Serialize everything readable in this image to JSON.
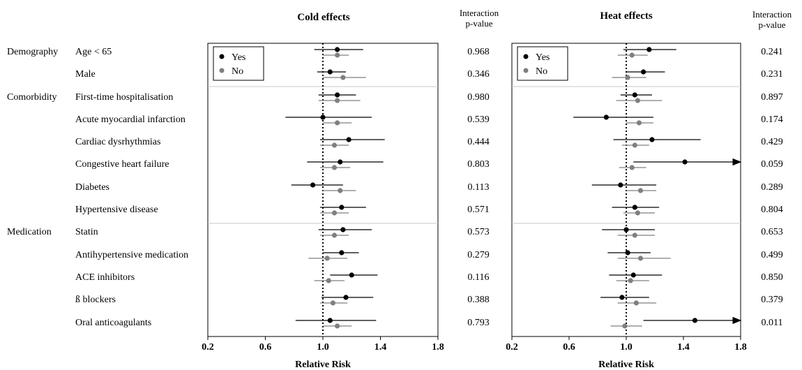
{
  "chart_data": [
    {
      "type": "forest",
      "title": "Cold effects",
      "xlabel": "Relative Risk",
      "xlim": [
        0.2,
        1.8
      ],
      "xticks": [
        "0.2",
        "0.6",
        "1.0",
        "1.4",
        "1.8"
      ],
      "reference_line": 1.0,
      "legend": {
        "position": "top-left",
        "items": [
          {
            "label": "Yes",
            "color": "#000000"
          },
          {
            "label": "No",
            "color": "#7f7f7f"
          }
        ]
      },
      "rows": [
        {
          "yes": [
            1.1,
            0.94,
            1.28
          ],
          "no": [
            1.1,
            1.0,
            1.18
          ]
        },
        {
          "yes": [
            1.05,
            0.96,
            1.16
          ],
          "no": [
            1.14,
            1.0,
            1.3
          ]
        },
        {
          "yes": [
            1.1,
            0.97,
            1.23
          ],
          "no": [
            1.1,
            0.97,
            1.26
          ]
        },
        {
          "yes": [
            1.0,
            0.74,
            1.34
          ],
          "no": [
            1.1,
            1.0,
            1.2
          ]
        },
        {
          "yes": [
            1.18,
            0.98,
            1.43
          ],
          "no": [
            1.08,
            0.98,
            1.18
          ]
        },
        {
          "yes": [
            1.12,
            0.89,
            1.42
          ],
          "no": [
            1.08,
            0.98,
            1.19
          ]
        },
        {
          "yes": [
            0.93,
            0.78,
            1.14
          ],
          "no": [
            1.12,
            1.0,
            1.23
          ]
        },
        {
          "yes": [
            1.13,
            0.98,
            1.3
          ],
          "no": [
            1.08,
            0.98,
            1.18
          ]
        },
        {
          "yes": [
            1.14,
            0.97,
            1.34
          ],
          "no": [
            1.08,
            0.98,
            1.18
          ]
        },
        {
          "yes": [
            1.13,
            1.0,
            1.25
          ],
          "no": [
            1.03,
            0.9,
            1.17
          ]
        },
        {
          "yes": [
            1.2,
            1.05,
            1.38
          ],
          "no": [
            1.04,
            0.94,
            1.15
          ]
        },
        {
          "yes": [
            1.16,
            0.99,
            1.35
          ],
          "no": [
            1.07,
            0.98,
            1.17
          ]
        },
        {
          "yes": [
            1.05,
            0.81,
            1.37
          ],
          "no": [
            1.1,
            1.0,
            1.2
          ]
        }
      ],
      "interaction_header": [
        "Interaction",
        "p-value"
      ],
      "interaction_p": [
        "0.968",
        "0.346",
        "0.980",
        "0.539",
        "0.444",
        "0.803",
        "0.113",
        "0.571",
        "0.573",
        "0.279",
        "0.116",
        "0.388",
        "0.793"
      ]
    },
    {
      "type": "forest",
      "title": "Heat effects",
      "xlabel": "Relative Risk",
      "xlim": [
        0.2,
        1.8
      ],
      "xticks": [
        "0.2",
        "0.6",
        "1.0",
        "1.4",
        "1.8"
      ],
      "reference_line": 1.0,
      "legend": {
        "position": "top-left",
        "items": [
          {
            "label": "Yes",
            "color": "#000000"
          },
          {
            "label": "No",
            "color": "#7f7f7f"
          }
        ]
      },
      "rows": [
        {
          "yes": [
            1.16,
            0.98,
            1.35
          ],
          "no": [
            1.04,
            0.94,
            1.15
          ]
        },
        {
          "yes": [
            1.12,
            1.0,
            1.27
          ],
          "no": [
            1.01,
            0.9,
            1.14
          ]
        },
        {
          "yes": [
            1.06,
            0.96,
            1.18
          ],
          "no": [
            1.08,
            0.93,
            1.25
          ]
        },
        {
          "yes": [
            0.86,
            0.63,
            1.19
          ],
          "no": [
            1.09,
            1.0,
            1.19
          ]
        },
        {
          "yes": [
            1.18,
            0.91,
            1.52
          ],
          "no": [
            1.06,
            0.97,
            1.16
          ]
        },
        {
          "yes": [
            1.41,
            1.05,
            1.8
          ],
          "no": [
            1.04,
            0.95,
            1.14
          ],
          "yes_arrow": true
        },
        {
          "yes": [
            0.96,
            0.76,
            1.21
          ],
          "no": [
            1.1,
            1.0,
            1.21
          ]
        },
        {
          "yes": [
            1.06,
            0.9,
            1.23
          ],
          "no": [
            1.08,
            0.98,
            1.2
          ]
        },
        {
          "yes": [
            1.0,
            0.83,
            1.2
          ],
          "no": [
            1.06,
            0.94,
            1.2
          ]
        },
        {
          "yes": [
            1.01,
            0.87,
            1.17
          ],
          "no": [
            1.1,
            0.94,
            1.31
          ]
        },
        {
          "yes": [
            1.05,
            0.88,
            1.25
          ],
          "no": [
            1.03,
            0.93,
            1.16
          ]
        },
        {
          "yes": [
            0.97,
            0.82,
            1.16
          ],
          "no": [
            1.07,
            0.94,
            1.21
          ]
        },
        {
          "yes": [
            1.48,
            1.12,
            1.8
          ],
          "no": [
            0.99,
            0.89,
            1.11
          ],
          "yes_arrow": true
        }
      ],
      "interaction_header": [
        "Interaction",
        "p-value"
      ],
      "interaction_p": [
        "0.241",
        "0.231",
        "0.897",
        "0.174",
        "0.429",
        "0.059",
        "0.289",
        "0.804",
        "0.653",
        "0.499",
        "0.850",
        "0.379",
        "0.011"
      ]
    }
  ],
  "groups": [
    "Demography",
    "Comorbidity",
    "Medication"
  ],
  "covariates": [
    "Age < 65",
    "Male",
    "First-time hospitalisation",
    "Acute myocardial infarction",
    "Cardiac dysrhythmias",
    "Congestive heart failure",
    "Diabetes",
    "Hypertensive disease",
    "Statin",
    "Antihypertensive medication",
    "ACE inhibitors",
    "ß blockers",
    "Oral anticoagulants"
  ]
}
